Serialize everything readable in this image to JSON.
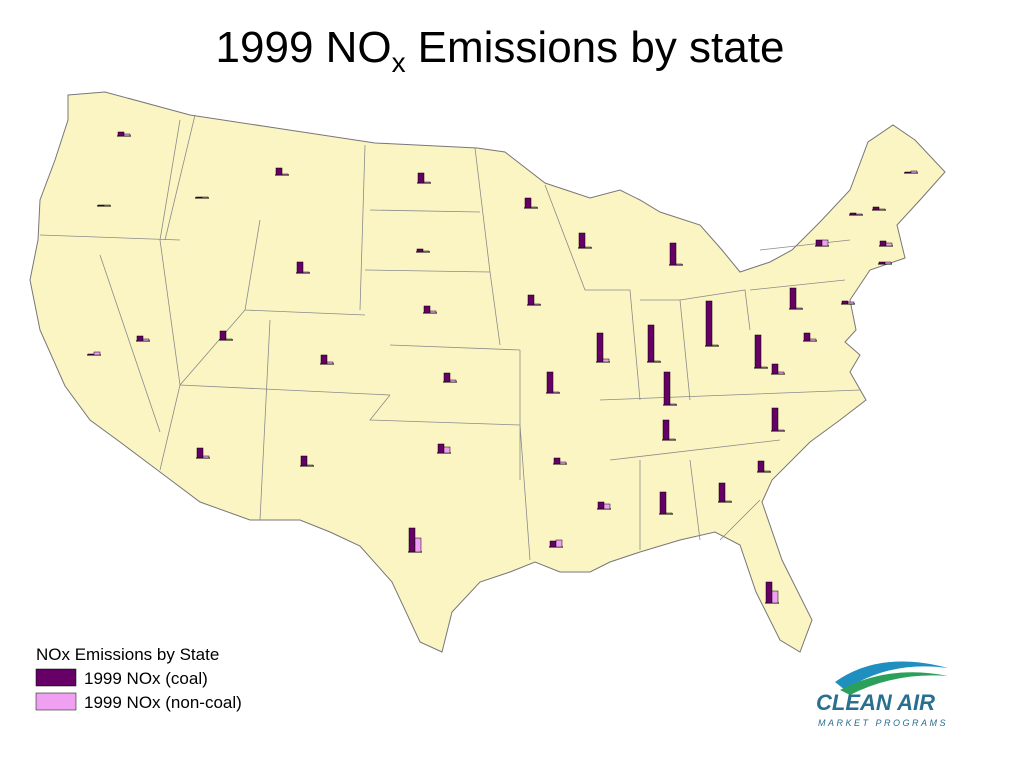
{
  "chart_data": {
    "type": "bar",
    "title": {
      "main": "1999 NO",
      "subscript": "x",
      "rest": "Emissions by state"
    },
    "legend_title": "NOx Emissions by State",
    "series": [
      {
        "name": "1999 NOx (coal)",
        "color": "#660066",
        "values": [
          4,
          1,
          1,
          5,
          1,
          7,
          11,
          9,
          9,
          10,
          10,
          10,
          3,
          7,
          9,
          9,
          24,
          10,
          10,
          21,
          6,
          6,
          15,
          29,
          22,
          37,
          45,
          33,
          20,
          7,
          22,
          19,
          21,
          11,
          23,
          10,
          33,
          21,
          8,
          6,
          3,
          1,
          3,
          2,
          5,
          2
        ]
      },
      {
        "name": "1999 NOx (non-coal)",
        "color": "#f0a0f0",
        "values": [
          2,
          1,
          3,
          2,
          1,
          1,
          1,
          1,
          2,
          2,
          1,
          1,
          1,
          2,
          2,
          6,
          14,
          1,
          1,
          1,
          2,
          7,
          1,
          3,
          1,
          1,
          1,
          1,
          1,
          5,
          1,
          1,
          12,
          1,
          1,
          2,
          1,
          1,
          2,
          6,
          2,
          2,
          1,
          1,
          3,
          2
        ]
      }
    ],
    "logo": {
      "name": "CLEAN AIR",
      "tagline": "MARKET PROGRAMS"
    }
  }
}
